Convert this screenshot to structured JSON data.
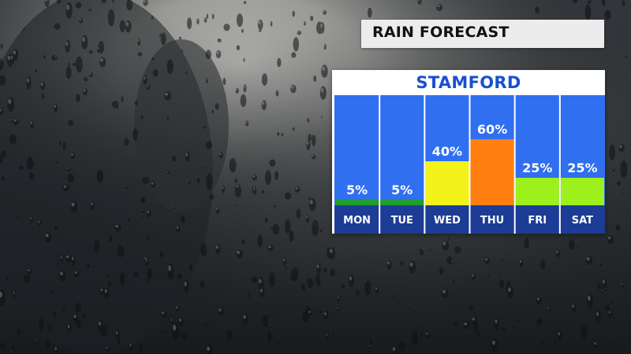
{
  "header": {
    "title": "RAIN FORECAST"
  },
  "location": {
    "name": "STAMFORD"
  },
  "colors": {
    "column_bg": "#2f6ff0",
    "day_strip": "#1c3c95",
    "divider": "#ffffff",
    "low": "#1f9e2c",
    "lowmid": "#9df01c",
    "mid": "#f3f31a",
    "high": "#ff7f11"
  },
  "chart_data": {
    "type": "bar",
    "categories": [
      "MON",
      "TUE",
      "WED",
      "THU",
      "FRI",
      "SAT"
    ],
    "values": [
      5,
      5,
      40,
      60,
      25,
      25
    ],
    "value_labels": [
      "5%",
      "5%",
      "40%",
      "60%",
      "25%",
      "25%"
    ],
    "bar_colors": [
      "#1f9e2c",
      "#1f9e2c",
      "#f3f31a",
      "#ff7f11",
      "#9df01c",
      "#9df01c"
    ],
    "ylim": [
      0,
      100
    ]
  }
}
